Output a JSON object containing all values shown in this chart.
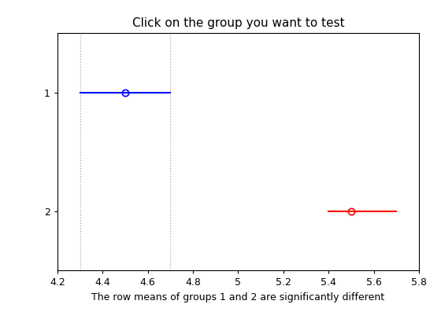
{
  "title": "Click on the group you want to test",
  "xlabel": "The row means of groups 1 and 2 are significantly different",
  "xlim": [
    4.2,
    5.8
  ],
  "ylim": [
    0.5,
    2.5
  ],
  "xticks": [
    4.2,
    4.4,
    4.6,
    4.8,
    5.0,
    5.2,
    5.4,
    5.6,
    5.8
  ],
  "xtick_labels": [
    "4.2",
    "4.4",
    "4.6",
    "4.8",
    "5",
    "5.2",
    "5.4",
    "5.6",
    "5.8"
  ],
  "yticks": [
    1,
    2
  ],
  "group1": {
    "y": 1,
    "mean": 4.5,
    "ci_low": 4.3,
    "ci_high": 4.7,
    "color": "#0000FF"
  },
  "group2": {
    "y": 2,
    "mean": 5.5,
    "ci_low": 5.4,
    "ci_high": 5.7,
    "color": "#FF0000"
  },
  "vlines": [
    4.3,
    4.7
  ],
  "vline_color": "#AAAAAA",
  "background_color": "#FFFFFF",
  "title_fontsize": 11,
  "xlabel_fontsize": 9,
  "tick_fontsize": 9
}
